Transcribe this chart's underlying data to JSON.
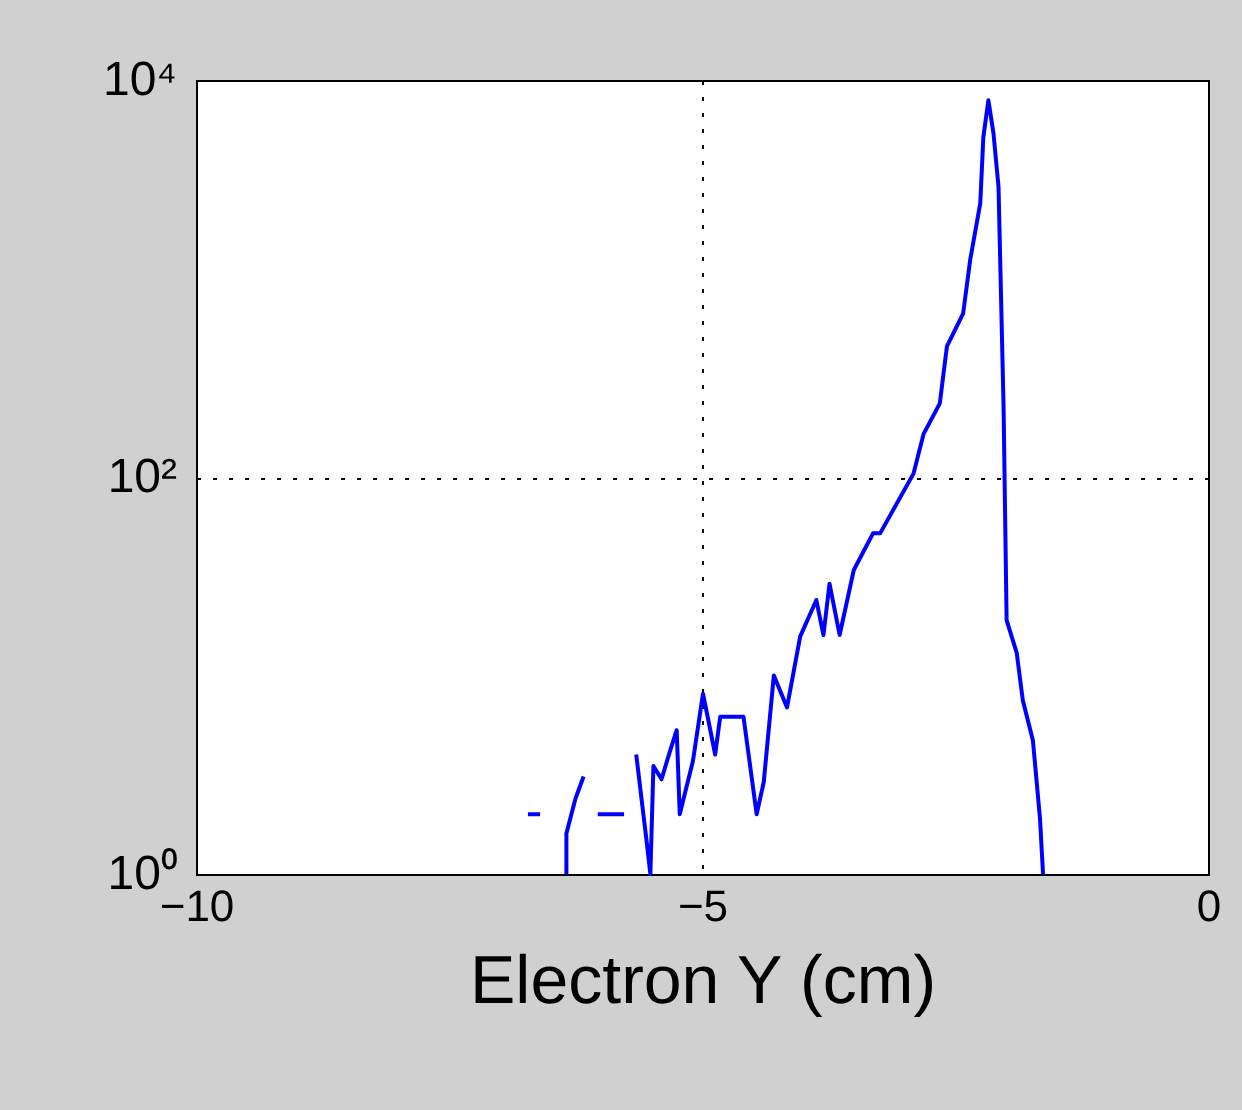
{
  "chart_data": {
    "type": "line",
    "xlabel": "Electron Y (cm)",
    "series": [
      {
        "color": "#0000ff",
        "x": [
          -6.72,
          -6.6,
          -6.5,
          -6.34,
          -6.34,
          -6.25,
          -6.17,
          -6.1,
          -6.03,
          -5.77,
          -5.7,
          -5.65,
          -5.55,
          -5.51,
          -5.48,
          -5.4,
          -5.32,
          -5.25,
          -5.22,
          -5.09,
          -4.99,
          -4.87,
          -4.82,
          -4.59,
          -4.46,
          -4.39,
          -4.29,
          -4.16,
          -4.03,
          -3.87,
          -3.8,
          -3.74,
          -3.64,
          -3.5,
          -3.31,
          -3.24,
          -2.91,
          -2.81,
          -2.65,
          -2.58,
          -2.42,
          -2.35,
          -2.25,
          -2.22,
          -2.17,
          -2.12,
          -2.07,
          -2.02,
          -1.99,
          -1.89,
          -1.83,
          -1.73,
          -1.66,
          -1.63
        ],
        "values": [
          2.0,
          2.0,
          null,
          1.0,
          1.6,
          2.4,
          3.1,
          null,
          2.0,
          2.0,
          null,
          4.0,
          1.5,
          1.0,
          3.5,
          3.0,
          4.1,
          5.3,
          2.0,
          3.7,
          8.1,
          4.0,
          6.2,
          6.2,
          2.0,
          2.9,
          10,
          6.9,
          15.7,
          24,
          16,
          29,
          16,
          34,
          52,
          52,
          104,
          165,
          235,
          455,
          665,
          1240,
          2400,
          5150,
          7900,
          5400,
          2900,
          225,
          19,
          13,
          7.5,
          4.7,
          1.9,
          1.0
        ]
      }
    ],
    "xlim": [
      -10,
      0
    ],
    "xticks": [
      -10,
      -5,
      0
    ],
    "ylim": [
      1,
      10000
    ],
    "yticks": [
      {
        "value": 1,
        "label": "10⁰"
      },
      {
        "value": 100,
        "label": "10²"
      },
      {
        "value": 10000,
        "label": "10⁴"
      }
    ],
    "log": "y",
    "grid": true,
    "line_style": "solid",
    "marker": "none",
    "legend": false
  }
}
